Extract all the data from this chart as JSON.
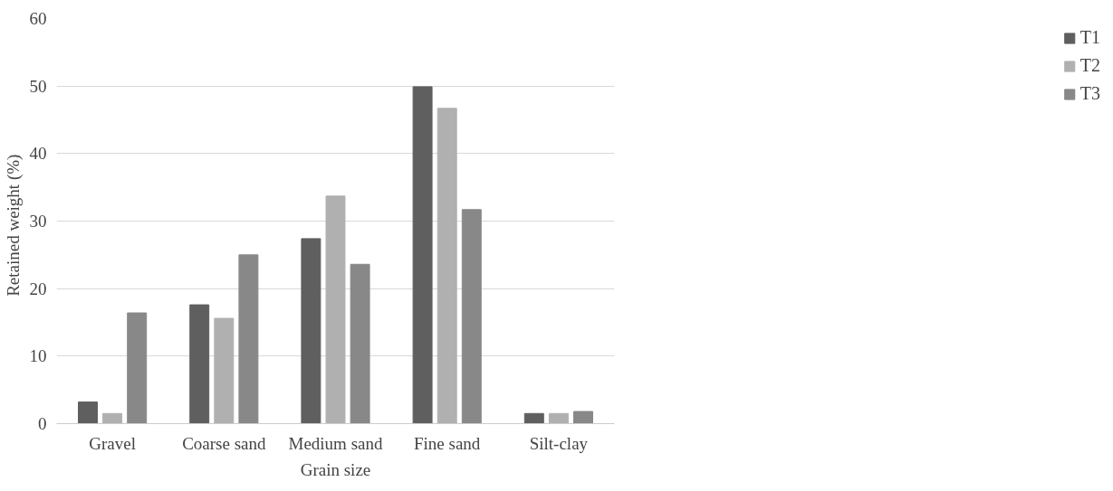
{
  "chart_data": {
    "type": "bar",
    "xlabel": "Grain size",
    "ylabel": "Retained  weight  (%)",
    "categories": [
      "Gravel",
      "Coarse sand",
      "Medium sand",
      "Fine sand",
      "Silt-clay"
    ],
    "series": [
      {
        "name": "T1",
        "color": "#5f5f5f",
        "values": [
          3.2,
          17.6,
          27.4,
          49.9,
          1.5
        ]
      },
      {
        "name": "T2",
        "color": "#b0b0b0",
        "values": [
          1.5,
          15.6,
          33.7,
          46.7,
          1.5
        ]
      },
      {
        "name": "T3",
        "color": "#888888",
        "values": [
          16.4,
          25.0,
          23.6,
          31.7,
          1.8
        ]
      }
    ],
    "ylim": [
      0,
      60
    ],
    "yticks": [
      0,
      10,
      20,
      30,
      40,
      50,
      60
    ],
    "grid": "y",
    "legend": "right"
  }
}
